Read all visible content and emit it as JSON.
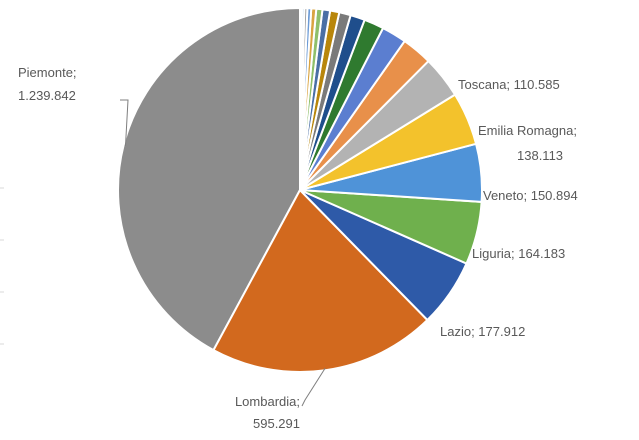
{
  "chart_data": {
    "type": "pie",
    "title": "",
    "start_angle_deg": 0,
    "direction": "counterclockwise",
    "slices": [
      {
        "name": "Piemonte",
        "value": 1239842,
        "label_name": "Piemonte;",
        "label_value": "1.239.842",
        "color": "#8c8c8c"
      },
      {
        "name": "Lombardia",
        "value": 595291,
        "label_name": "Lombardia;",
        "label_value": "595.291",
        "color": "#d2691e"
      },
      {
        "name": "Lazio",
        "value": 177912,
        "label_name": "Lazio; 177.912",
        "label_value": "",
        "color": "#2e5aa8"
      },
      {
        "name": "Liguria",
        "value": 164183,
        "label_name": "Liguria; 164.183",
        "label_value": "",
        "color": "#6fb04d"
      },
      {
        "name": "Veneto",
        "value": 150894,
        "label_name": "Veneto; 150.894",
        "label_value": "",
        "color": "#4f93d8"
      },
      {
        "name": "Emilia Romagna",
        "value": 138113,
        "label_name": "Emilia Romagna;",
        "label_value": "138.113",
        "color": "#f3c22c"
      },
      {
        "name": "Toscana",
        "value": 110585,
        "label_name": "Toscana; 110.585",
        "label_value": "",
        "color": "#b3b3b3"
      },
      {
        "name": "",
        "value": 80000,
        "label_name": "",
        "label_value": "",
        "color": "#e8904a"
      },
      {
        "name": "",
        "value": 65000,
        "label_name": "",
        "label_value": "",
        "color": "#5b7ed0"
      },
      {
        "name": "",
        "value": 52000,
        "label_name": "",
        "label_value": "",
        "color": "#2f7a2f"
      },
      {
        "name": "",
        "value": 38000,
        "label_name": "",
        "label_value": "",
        "color": "#1f4e8c"
      },
      {
        "name": "",
        "value": 30000,
        "label_name": "",
        "label_value": "",
        "color": "#7a7a7a"
      },
      {
        "name": "",
        "value": 24000,
        "label_name": "",
        "label_value": "",
        "color": "#b8860b"
      },
      {
        "name": "",
        "value": 20000,
        "label_name": "",
        "label_value": "",
        "color": "#4a6fa5"
      },
      {
        "name": "",
        "value": 16000,
        "label_name": "",
        "label_value": "",
        "color": "#8fbf6a"
      },
      {
        "name": "",
        "value": 13000,
        "label_name": "",
        "label_value": "",
        "color": "#d9a441"
      },
      {
        "name": "",
        "value": 10000,
        "label_name": "",
        "label_value": "",
        "color": "#6c9bd6"
      },
      {
        "name": "",
        "value": 8000,
        "label_name": "",
        "label_value": "",
        "color": "#a0a0a0"
      },
      {
        "name": "",
        "value": 6000,
        "label_name": "",
        "label_value": "",
        "color": "#9dc3e6"
      },
      {
        "name": "",
        "value": 5000,
        "label_name": "",
        "label_value": "",
        "color": "#c9d9ef"
      }
    ]
  }
}
